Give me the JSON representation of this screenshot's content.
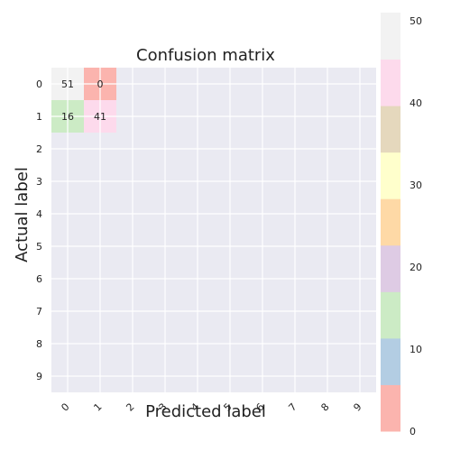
{
  "chart_data": {
    "type": "heatmap",
    "title": "Confusion matrix",
    "xlabel": "Predicted label",
    "ylabel": "Actual label",
    "x_ticks": [
      "0",
      "1",
      "2",
      "3",
      "4",
      "5",
      "6",
      "7",
      "8",
      "9"
    ],
    "y_ticks": [
      "0",
      "1",
      "2",
      "3",
      "4",
      "5",
      "6",
      "7",
      "8",
      "9"
    ],
    "cells": [
      {
        "row": 0,
        "col": 0,
        "value": 51,
        "label": "51"
      },
      {
        "row": 0,
        "col": 1,
        "value": 0,
        "label": "0"
      },
      {
        "row": 1,
        "col": 0,
        "value": 16,
        "label": "16"
      },
      {
        "row": 1,
        "col": 1,
        "value": 41,
        "label": "41"
      }
    ],
    "colorbar": {
      "min": 0,
      "max": 51,
      "ticks": [
        "0",
        "10",
        "20",
        "30",
        "40",
        "50"
      ],
      "tick_values": [
        0,
        10,
        20,
        30,
        40,
        50
      ],
      "colors": [
        "#fbb4ae",
        "#b3cde3",
        "#ccebc5",
        "#decbe4",
        "#fed9a6",
        "#ffffcc",
        "#e5d8bd",
        "#fddaec",
        "#f2f2f2"
      ]
    },
    "grid": true,
    "background": "#eaeaf2"
  }
}
